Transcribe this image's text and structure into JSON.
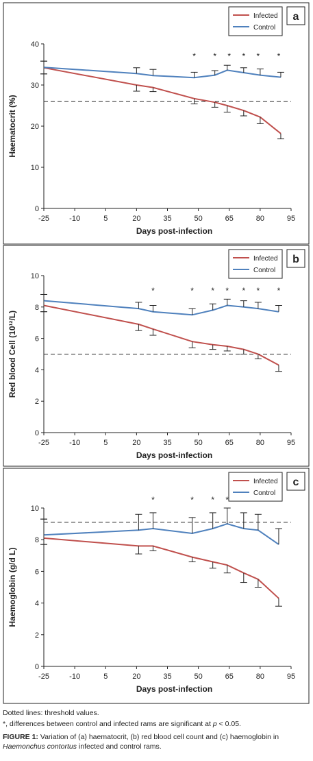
{
  "chart_data": [
    {
      "type": "line",
      "panel_label": "a",
      "xlabel": "Days post-infection",
      "ylabel": "Haematocrit (%)",
      "xlim": [
        -25,
        95
      ],
      "ylim": [
        0,
        40
      ],
      "xticks": [
        -25,
        -10,
        5,
        20,
        35,
        50,
        65,
        80,
        95
      ],
      "yticks": [
        0,
        10,
        20,
        30,
        40
      ],
      "threshold": 26,
      "legend": "top-right",
      "series": [
        {
          "name": "Infected",
          "color": "#c0504d",
          "x": [
            -25,
            20,
            28,
            48,
            58,
            64,
            72,
            80,
            90
          ],
          "y": [
            34.2,
            30.0,
            29.4,
            26.7,
            25.8,
            25.0,
            23.8,
            22.2,
            18.2
          ],
          "err": [
            1.5,
            1.5,
            1.0,
            1.3,
            1.2,
            1.6,
            1.3,
            1.6,
            1.3
          ]
        },
        {
          "name": "Control",
          "color": "#4f81bd",
          "x": [
            -25,
            20,
            28,
            48,
            58,
            64,
            72,
            80,
            90
          ],
          "y": [
            34.3,
            32.8,
            32.3,
            31.8,
            32.4,
            33.6,
            33.0,
            32.4,
            31.9
          ],
          "err": [
            1.5,
            1.4,
            1.5,
            1.3,
            1.1,
            1.2,
            1.2,
            1.5,
            1.2
          ]
        }
      ],
      "significance_marks": [
        "*",
        "*",
        "*",
        "*",
        "*",
        "*"
      ],
      "significance_x": [
        48,
        58,
        65,
        72,
        79,
        89
      ]
    },
    {
      "type": "line",
      "panel_label": "b",
      "xlabel": "Days post-infection",
      "ylabel": "Red blood Cell (10¹²/L)",
      "xlim": [
        -25,
        95
      ],
      "ylim": [
        0,
        10
      ],
      "xticks": [
        -25,
        -10,
        5,
        20,
        35,
        50,
        65,
        80,
        95
      ],
      "yticks": [
        0,
        2,
        4,
        6,
        8,
        10
      ],
      "threshold": 5,
      "legend": "top-right",
      "series": [
        {
          "name": "Infected",
          "color": "#c0504d",
          "x": [
            -25,
            21,
            28,
            47,
            57,
            64,
            72,
            79,
            89
          ],
          "y": [
            8.1,
            6.9,
            6.6,
            5.8,
            5.6,
            5.5,
            5.3,
            5.0,
            4.3
          ],
          "err": [
            0.4,
            0.4,
            0.4,
            0.4,
            0.3,
            0.3,
            0.3,
            0.3,
            0.4
          ]
        },
        {
          "name": "Control",
          "color": "#4f81bd",
          "x": [
            -25,
            21,
            28,
            47,
            57,
            64,
            72,
            79,
            89
          ],
          "y": [
            8.4,
            7.9,
            7.7,
            7.5,
            7.8,
            8.1,
            8.0,
            7.9,
            7.7
          ],
          "err": [
            0.4,
            0.4,
            0.4,
            0.4,
            0.4,
            0.4,
            0.4,
            0.4,
            0.4
          ]
        }
      ],
      "significance_marks": [
        "*",
        "*",
        "*",
        "*",
        "*",
        "*",
        "*",
        "*"
      ],
      "significance_x": [
        28,
        47,
        57,
        64,
        72,
        79,
        89,
        89
      ]
    },
    {
      "type": "line",
      "panel_label": "c",
      "xlabel": "Days post-infection",
      "ylabel": "Haemoglobin (g/d L)",
      "xlim": [
        -25,
        95
      ],
      "ylim": [
        0,
        10
      ],
      "xticks": [
        -25,
        -10,
        5,
        20,
        35,
        50,
        65,
        80,
        95
      ],
      "yticks": [
        0,
        2,
        4,
        6,
        8,
        10
      ],
      "threshold": 9.1,
      "legend": "top-right",
      "series": [
        {
          "name": "Infected",
          "color": "#c0504d",
          "x": [
            -25,
            21,
            28,
            47,
            57,
            64,
            72,
            79,
            89
          ],
          "y": [
            8.1,
            7.6,
            7.6,
            6.9,
            6.6,
            6.4,
            5.9,
            5.5,
            4.3
          ],
          "err": [
            0.4,
            0.5,
            0.3,
            0.3,
            0.4,
            0.5,
            0.6,
            0.5,
            0.5
          ]
        },
        {
          "name": "Control",
          "color": "#4f81bd",
          "x": [
            -25,
            21,
            28,
            47,
            57,
            64,
            72,
            79,
            89
          ],
          "y": [
            8.3,
            8.6,
            8.7,
            8.4,
            8.7,
            9.0,
            8.7,
            8.6,
            7.7
          ],
          "err": [
            1.0,
            1.0,
            1.0,
            1.0,
            1.0,
            1.0,
            1.0,
            1.0,
            1.0
          ]
        }
      ],
      "significance_marks": [
        "*",
        "*",
        "*",
        "*",
        "*",
        "*",
        "*"
      ],
      "significance_x": [
        28,
        47,
        57,
        64,
        72,
        79,
        89
      ]
    }
  ],
  "caption": {
    "note1": "Dotted lines: threshold values.",
    "note2_prefix": "*, differences between control and infected rams are significant at ",
    "note2_p": "p",
    "note2_suffix": " < 0.05.",
    "fig_label": "FIGURE 1:",
    "fig_text_part1": " Variation of (a) haematocrit, (b) red blood cell count and (c) haemoglobin in ",
    "fig_species": "Haemonchus contortus",
    "fig_text_part2": " infected and control rams."
  }
}
